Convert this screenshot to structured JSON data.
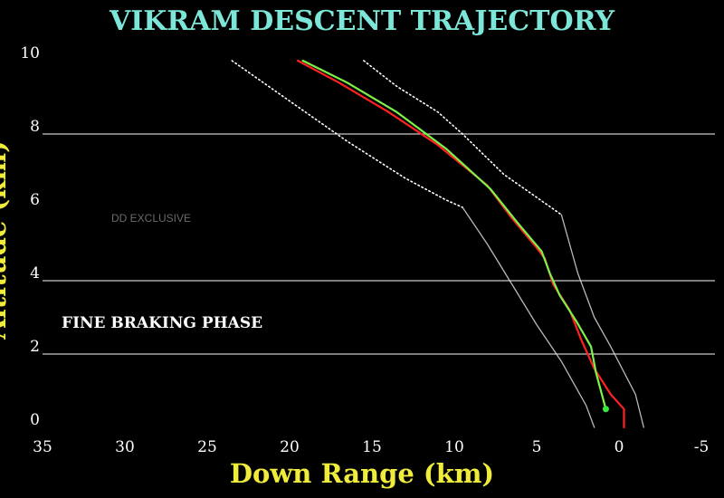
{
  "chart_data": {
    "type": "line",
    "title": "VIKRAM DESCENT TRAJECTORY",
    "xlabel": "Down Range (km)",
    "ylabel": "Altitude (km)",
    "xlim": [
      35,
      -5
    ],
    "ylim": [
      0,
      10
    ],
    "x_ticks": [
      "35",
      "30",
      "25",
      "20",
      "15",
      "10",
      "5",
      "0",
      "-5"
    ],
    "y_ticks": [
      "0",
      "2",
      "4",
      "6",
      "8",
      "10"
    ],
    "grid": {
      "horizontal_lines_at": [
        2,
        4,
        8
      ]
    },
    "annotations": [
      {
        "text": "FINE BRAKING PHASE"
      },
      {
        "text": "DD EXCLUSIVE"
      }
    ],
    "series": [
      {
        "style": "dotted-white",
        "x": [
          23.5,
          20,
          16.5,
          13,
          10.5,
          9.5
        ],
        "y": [
          10,
          8.9,
          7.8,
          6.8,
          6.2,
          6.0
        ]
      },
      {
        "style": "dotted-white",
        "x": [
          15.5,
          13.5,
          11,
          9.5,
          7,
          3.5
        ],
        "y": [
          10,
          9.3,
          8.6,
          8.0,
          6.9,
          5.8
        ]
      },
      {
        "style": "envelope-white",
        "x": [
          9.5,
          8,
          6.5,
          5,
          3.5,
          2,
          1.5
        ],
        "y": [
          6.0,
          5.0,
          3.9,
          2.8,
          1.8,
          0.6,
          0
        ]
      },
      {
        "style": "envelope-white",
        "x": [
          3.5,
          2.5,
          1.5,
          0.5,
          -1,
          -1.5
        ],
        "y": [
          5.8,
          4.2,
          3.0,
          2.2,
          0.9,
          0
        ]
      },
      {
        "name": "",
        "color": "#ff2222",
        "x": [
          19.5,
          17,
          14,
          11,
          8,
          6.5,
          5,
          4.5,
          4,
          3,
          2.3,
          1.5,
          0.5,
          -0.3,
          -0.3
        ],
        "y": [
          10,
          9.4,
          8.6,
          7.7,
          6.6,
          5.7,
          4.9,
          4.6,
          3.9,
          3.2,
          2.4,
          1.6,
          0.9,
          0.5,
          0
        ]
      },
      {
        "name": "",
        "color": "#7cf24a",
        "x": [
          19.2,
          16.5,
          13.5,
          10.5,
          7.8,
          6.2,
          4.7,
          4.2,
          3.6,
          2.6,
          1.7,
          1.4,
          0.8
        ],
        "y": [
          10,
          9.4,
          8.6,
          7.6,
          6.5,
          5.6,
          4.8,
          4.2,
          3.6,
          2.9,
          2.2,
          1.5,
          0.5
        ]
      }
    ],
    "endpoint_marker": {
      "x": 0.8,
      "y": 0.5,
      "color": "#39e83a"
    },
    "colors": {
      "background": "#000000",
      "title": "#7ce6d8",
      "axis_label": "#f0ec3c",
      "tick": "#ffffff",
      "grid": "#c8c8c8"
    }
  }
}
